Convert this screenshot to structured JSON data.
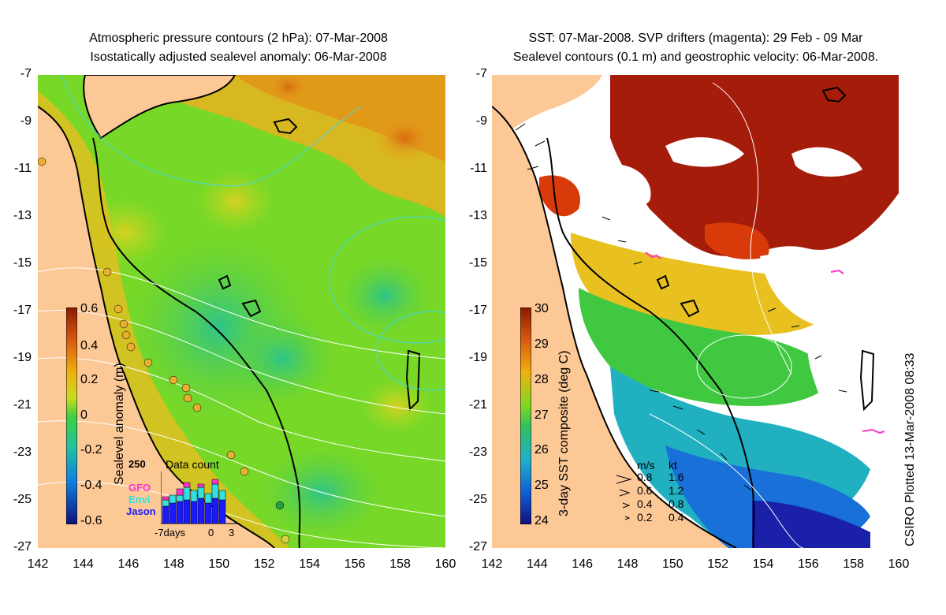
{
  "left_panel": {
    "title_line1": "Atmospheric pressure contours (2 hPa): 07-Mar-2008",
    "title_line2": "Isostatically adjusted sealevel anomaly: 06-Mar-2008",
    "colorbar": {
      "label": "Sealevel anomaly (m)",
      "ticks": [
        "0.6",
        "0.4",
        "0.2",
        "0",
        "-0.2",
        "-0.4",
        "-0.6"
      ]
    },
    "inset": {
      "title": "Data count",
      "y_max": "250",
      "legend": [
        {
          "name": "GFO",
          "color": "#ff33cc"
        },
        {
          "name": "Envi",
          "color": "#33e0e0"
        },
        {
          "name": "Jason",
          "color": "#1a1aff"
        }
      ],
      "x_labels": [
        "-7days",
        "0",
        "3"
      ]
    }
  },
  "right_panel": {
    "title_line1": "SST: 07-Mar-2008. SVP drifters (magenta): 29 Feb - 09 Mar",
    "title_line2": "Sealevel contours (0.1 m) and geostrophic velocity: 06-Mar-2008.",
    "colorbar": {
      "label": "3-day SST composite (deg C)",
      "ticks": [
        "30",
        "29",
        "28",
        "27",
        "26",
        "25",
        "24"
      ]
    },
    "velocity_legend": {
      "header_ms": "m/s",
      "header_kt": "kt",
      "rows": [
        {
          "ms": "0.8",
          "kt": "1.6"
        },
        {
          "ms": "0.6",
          "kt": "1.2"
        },
        {
          "ms": "0.4",
          "kt": "0.8"
        },
        {
          "ms": "0.2",
          "kt": "0.4"
        }
      ]
    },
    "credit": "CSIRO Plotted 13-Mar-2008 08:33"
  },
  "axes": {
    "y_ticks": [
      "-7",
      "-9",
      "-11",
      "-13",
      "-15",
      "-17",
      "-19",
      "-21",
      "-23",
      "-25",
      "-27"
    ],
    "x_ticks": [
      "142",
      "144",
      "146",
      "148",
      "150",
      "152",
      "154",
      "156",
      "158",
      "160"
    ]
  },
  "colors": {
    "land": "#fcc896",
    "coast": "#000000",
    "contour_white": "#ffffff",
    "contour_cyan": "#40d8e8"
  }
}
